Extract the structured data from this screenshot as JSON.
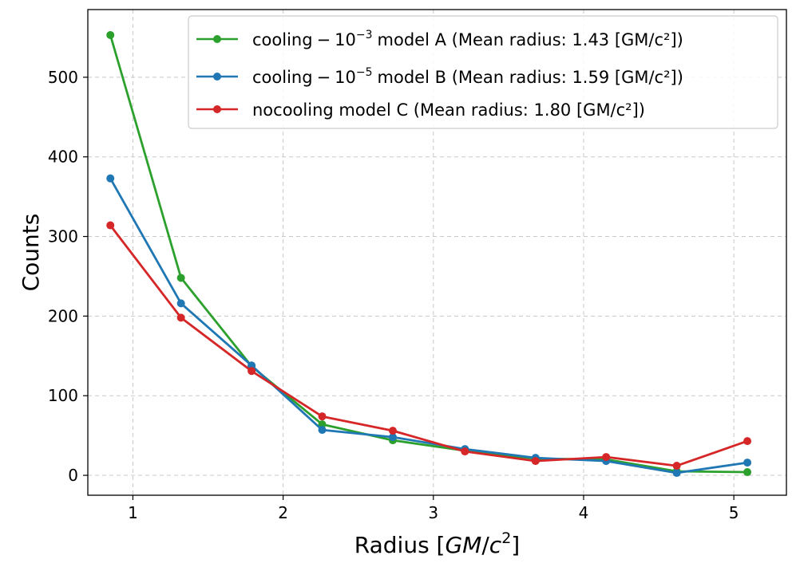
{
  "chart_data": {
    "type": "line",
    "title": "",
    "xlabel": "Radius [GM/c²]",
    "xlabel_parts": {
      "prefix": "Radius [",
      "var1": "GM",
      "slash": "/",
      "var2": "c",
      "sup": "2",
      "suffix": "]"
    },
    "ylabel": "Counts",
    "xlim": [
      0.7,
      5.35
    ],
    "ylim": [
      -25,
      585
    ],
    "xticks": [
      1,
      2,
      3,
      4,
      5
    ],
    "xtick_labels": [
      "1",
      "2",
      "3",
      "4",
      "5"
    ],
    "yticks": [
      0,
      100,
      200,
      300,
      400,
      500
    ],
    "ytick_labels": [
      "0",
      "100",
      "200",
      "300",
      "400",
      "500"
    ],
    "grid": true,
    "legend_position": "top-right",
    "x": [
      0.85,
      1.32,
      1.79,
      2.26,
      2.73,
      3.21,
      3.68,
      4.15,
      4.62,
      5.09
    ],
    "series": [
      {
        "name": "cooling − 10⁻³ model A (Mean radius: 1.43 [GM/c²])",
        "label_parts": {
          "pre": "cooling",
          "minus": "−",
          "base": "10",
          "exp": "−3",
          "post": "model A (Mean radius: 1.43 [GM/c²])"
        },
        "color": "#2ca02c",
        "values": [
          553,
          248,
          137,
          64,
          44,
          31,
          21,
          20,
          5,
          4
        ]
      },
      {
        "name": "cooling − 10⁻⁵ model B (Mean radius: 1.59 [GM/c²])",
        "label_parts": {
          "pre": "cooling",
          "minus": "−",
          "base": "10",
          "exp": "−5",
          "post": "model B (Mean radius: 1.59 [GM/c²])"
        },
        "color": "#1f77b4",
        "values": [
          373,
          216,
          138,
          57,
          48,
          33,
          22,
          18,
          3,
          16
        ]
      },
      {
        "name": "nocooling model C (Mean radius: 1.80 [GM/c²])",
        "label_parts": {
          "pre": "nocooling model C (Mean radius: 1.80 [GM/c²])"
        },
        "color": "#d62728",
        "values": [
          314,
          198,
          131,
          74,
          56,
          30,
          18,
          23,
          12,
          43
        ]
      }
    ]
  }
}
